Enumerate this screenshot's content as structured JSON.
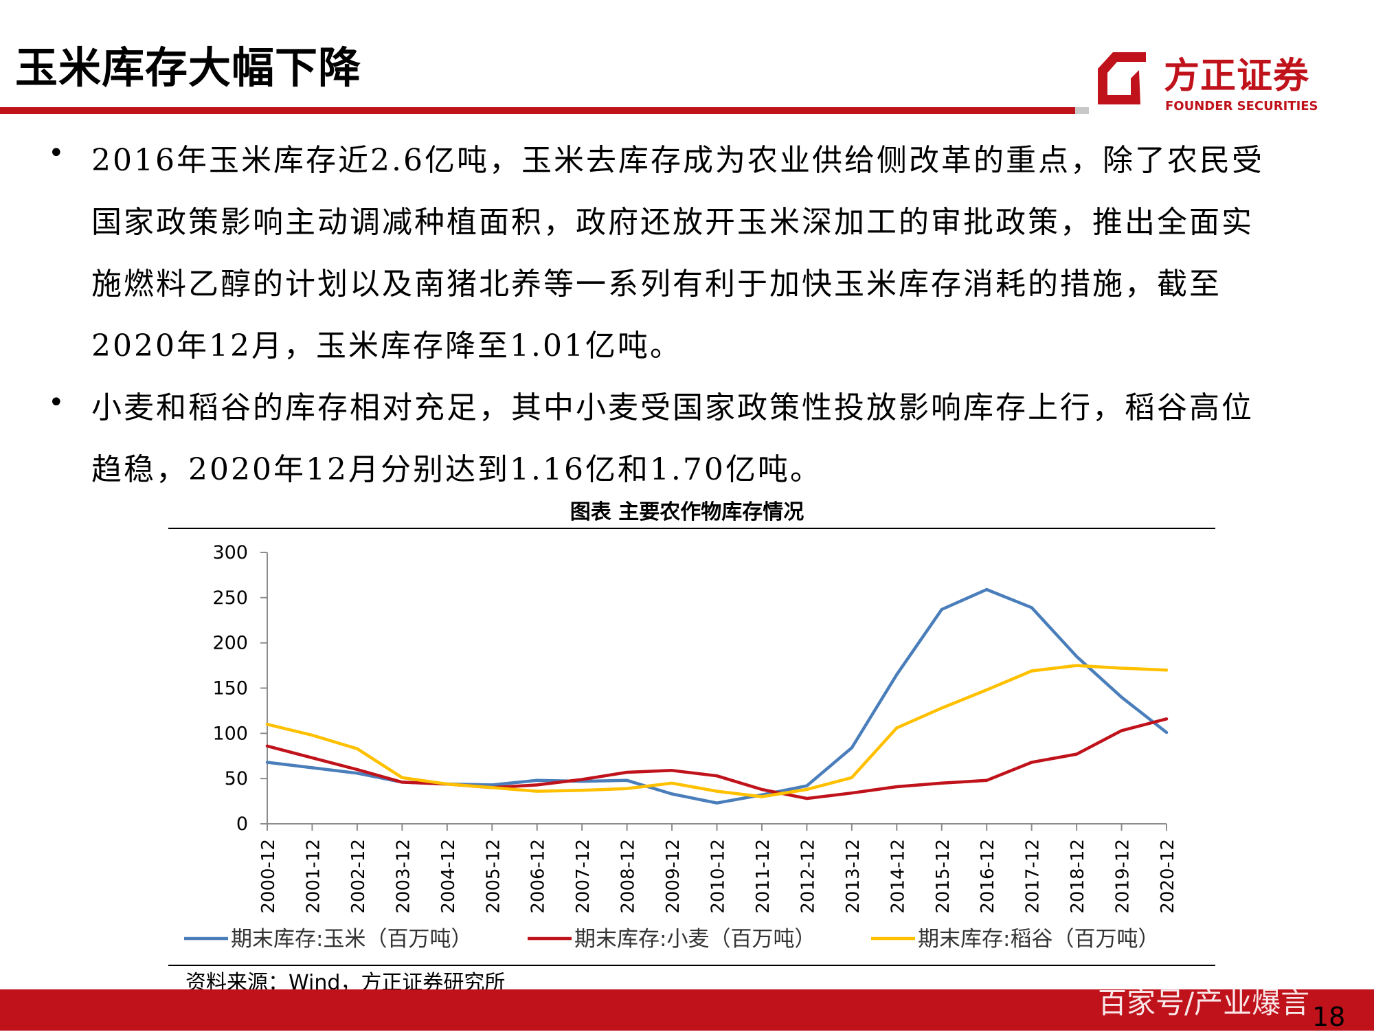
{
  "header": {
    "title": "玉米库存大幅下降",
    "logo_cn": "方正证券",
    "logo_en": "FOUNDER SECURITIES"
  },
  "bullets": [
    {
      "lines": [
        "2016年玉米库存近2.6亿吨，玉米去库存成为农业供给侧改革的重点，除了农民受",
        "国家政策影响主动调减种植面积，政府还放开玉米深加工的审批政策，推出全面实",
        "施燃料乙醇的计划以及南猪北养等一系列有利于加快玉米库存消耗的措施，截至",
        "2020年12月，玉米库存降至1.01亿吨。"
      ]
    },
    {
      "lines": [
        "小麦和稻谷的库存相对充足，其中小麦受国家政策性投放影响库存上行，稻谷高位",
        "趋稳，2020年12月分别达到1.16亿和1.70亿吨。"
      ]
    }
  ],
  "chart_data": {
    "type": "line",
    "title": "图表 主要农作物库存情况",
    "x": [
      "2000-12",
      "2001-12",
      "2002-12",
      "2003-12",
      "2004-12",
      "2005-12",
      "2006-12",
      "2007-12",
      "2008-12",
      "2009-12",
      "2010-12",
      "2011-12",
      "2012-12",
      "2013-12",
      "2014-12",
      "2015-12",
      "2016-12",
      "2017-12",
      "2018-12",
      "2019-12",
      "2020-12"
    ],
    "ylim": [
      0,
      300
    ],
    "yticks": [
      0,
      50,
      100,
      150,
      200,
      250,
      300
    ],
    "grid": false,
    "legend_position": "bottom",
    "series": [
      {
        "name": "期末库存:玉米（百万吨）",
        "color": "#4a7ebb",
        "values": [
          68,
          62,
          56,
          46,
          44,
          43,
          48,
          47,
          48,
          33,
          23,
          32,
          42,
          84,
          165,
          237,
          259,
          239,
          185,
          140,
          101
        ]
      },
      {
        "name": "期末库存:小麦（百万吨）",
        "color": "#c0121b",
        "values": [
          86,
          73,
          60,
          46,
          44,
          40,
          43,
          49,
          57,
          59,
          53,
          38,
          28,
          34,
          41,
          45,
          48,
          68,
          77,
          103,
          116
        ]
      },
      {
        "name": "期末库存:稻谷（百万吨）",
        "color": "#ffc000",
        "values": [
          110,
          98,
          83,
          51,
          44,
          40,
          36,
          37,
          39,
          45,
          36,
          30,
          38,
          51,
          106,
          128,
          148,
          169,
          175,
          172,
          170
        ]
      }
    ]
  },
  "source": "资料来源：Wind，方正证券研究所",
  "footer": {
    "watermark": "百家号/产业爆言",
    "page": "18"
  }
}
